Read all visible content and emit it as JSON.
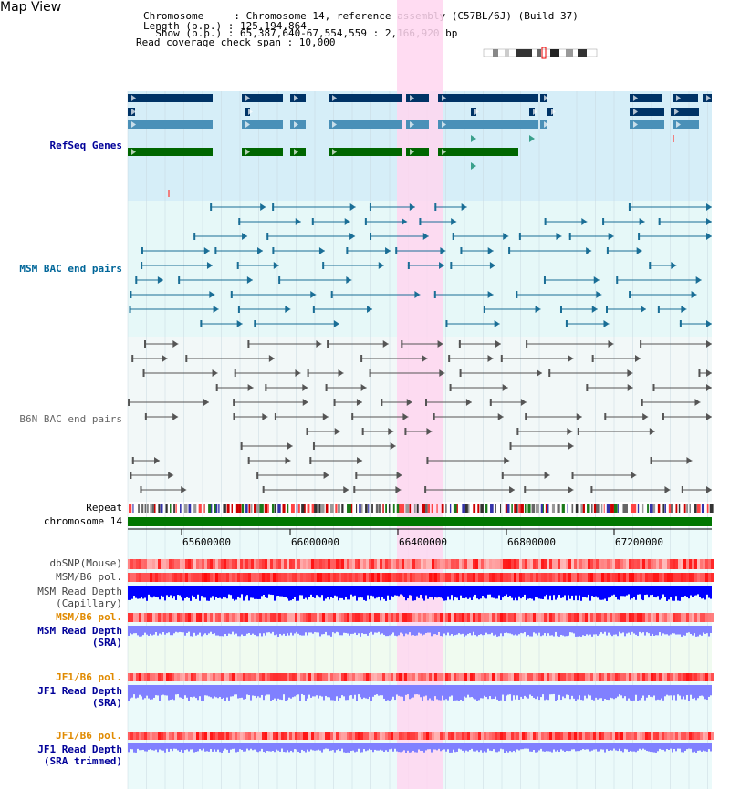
{
  "map_title": "Map View",
  "info": {
    "chromosome_line": "Chromosome     : Chromosome 14, reference assembly (C57BL/6J) (Build 37)",
    "length_line": "Length (b.p.) : 125,194,864",
    "show_line": "  Show (b.p.) : 65,387,640-67,554,559 : 2,166,920 bp",
    "coverage_line": "Read coverage check span : 10,000"
  },
  "tracks": {
    "refseq_label": "RefSeq Genes",
    "msm_bac_label": "MSM BAC end pairs",
    "b6n_bac_label": "B6N BAC end pairs",
    "repeat_label": "Repeat",
    "chromosome_label": "chromosome 14",
    "dbsnp_label": "dbSNP(Mouse)",
    "msm_b6_pol_label": "MSM/B6 pol.",
    "msm_read_depth_cap_label1": "MSM Read Depth",
    "msm_read_depth_cap_label2": "(Capillary)",
    "msm_b6_pol_sra_label": "MSM/B6 pol.",
    "msm_read_depth_sra_label1": "MSM Read Depth",
    "msm_read_depth_sra_label2": "(SRA)",
    "jf1_b6_pol_label": "JF1/B6 pol.",
    "jf1_read_depth_sra_label1": "JF1 Read Depth",
    "jf1_read_depth_sra_label2": "(SRA)",
    "jf1_b6_pol_trim_label": "JF1/B6 pol.",
    "jf1_read_depth_trim_label1": "JF1 Read Depth",
    "jf1_read_depth_trim_label2": "(SRA trimmed)"
  },
  "axis": {
    "ticks": [
      "65600000",
      "66000000",
      "66400000",
      "66800000",
      "67200000"
    ]
  },
  "colors": {
    "refseq_bg": "#d6eef8",
    "msm_bg": "#e6f8f8",
    "b6n_bg": "#f2f8f8",
    "highlight": "#ffd6f0",
    "refseq_dark": "#003366",
    "refseq_mid": "#4a90b8",
    "refseq_green": "#006600",
    "msm_line": "#1a6e96",
    "b6n_line": "#555555",
    "chrom_bar": "#007700",
    "depth_blue": "#0000ff",
    "depth_light": "#8080ff",
    "label_navy": "#000099",
    "label_teal": "#006699",
    "label_orange": "#e08a00",
    "label_gray": "#666666"
  }
}
